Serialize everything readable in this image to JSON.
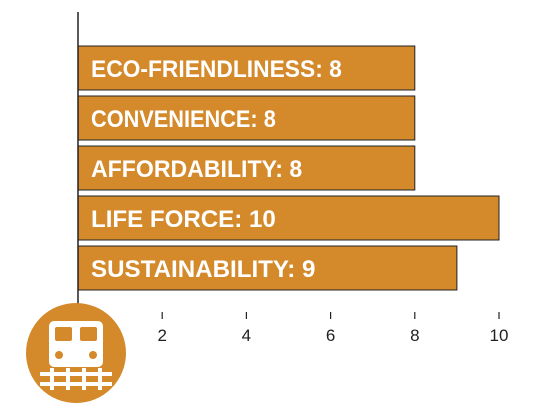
{
  "chart_data": {
    "type": "bar",
    "orientation": "horizontal",
    "categories": [
      "ECO-FRIENDLINESS",
      "CONVENIENCE",
      "AFFORDABILITY",
      "LIFE FORCE",
      "SUSTAINABILITY"
    ],
    "values": [
      8,
      8,
      8,
      10,
      9
    ],
    "bar_labels": [
      "ECO-FRIENDLINESS: 8",
      "CONVENIENCE: 8",
      "AFFORDABILITY: 8",
      "LIFE FORCE: 10",
      "SUSTAINABILITY: 9"
    ],
    "xlim": [
      0,
      10
    ],
    "xticks": [
      2,
      4,
      6,
      8,
      10
    ],
    "grid": false,
    "colors": {
      "bar": "#D4892A",
      "bar_stroke": "#222222",
      "label": "#ffffff",
      "axis": "#222222",
      "badge": "#D4892A"
    },
    "badge_icon": "train-icon"
  }
}
